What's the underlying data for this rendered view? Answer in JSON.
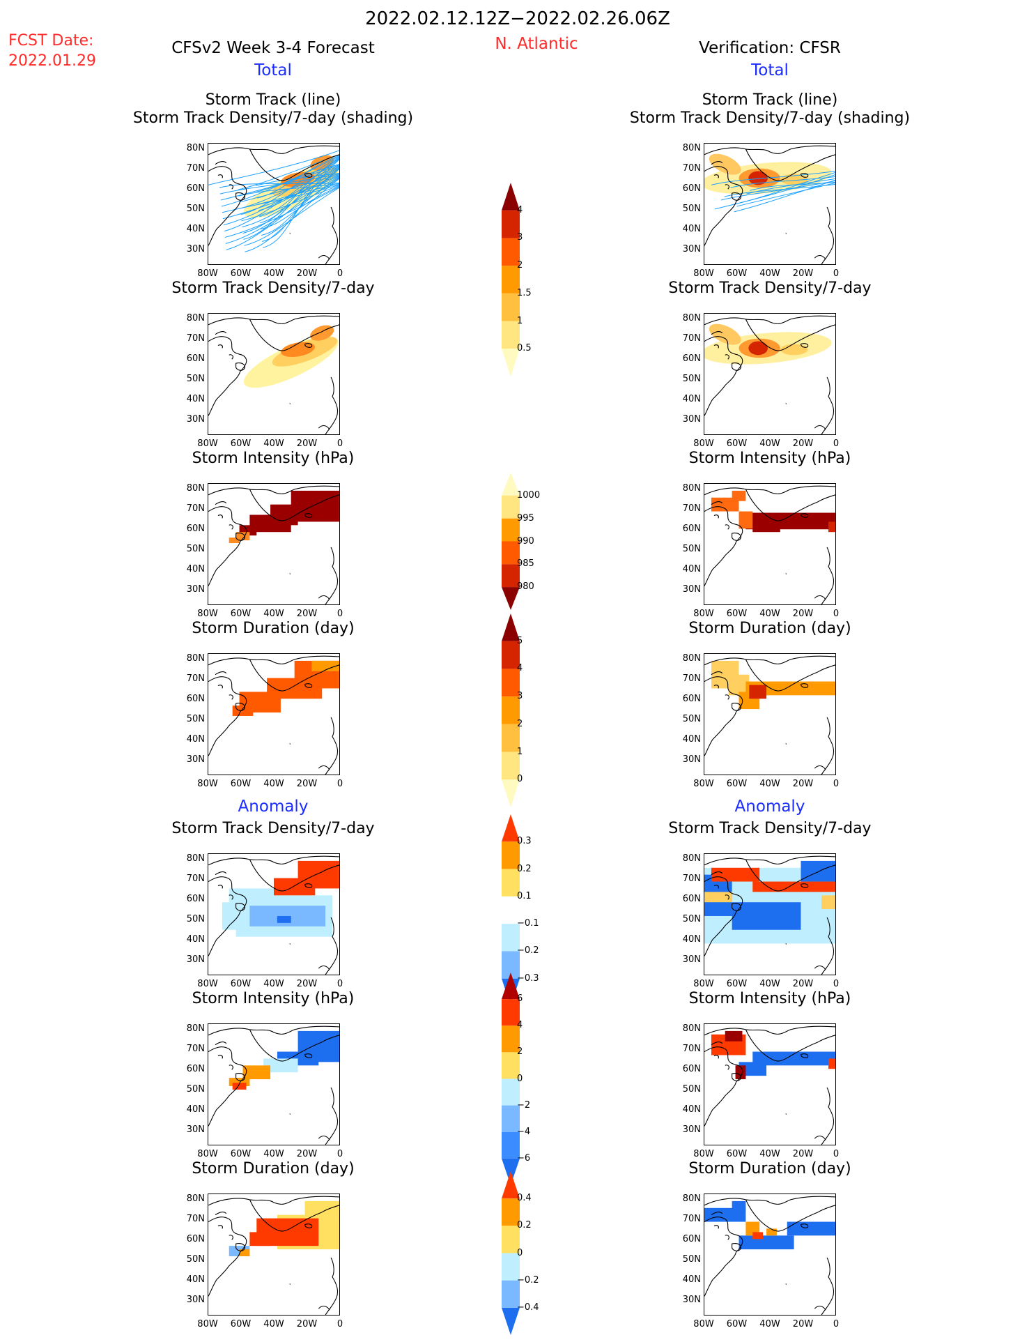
{
  "header": {
    "date_range": "2022.02.12.12Z−2022.02.26.06Z",
    "fcst_label": "FCST Date:",
    "fcst_date": "2022.01.29",
    "model_title": "CFSv2 Week 3-4 Forecast",
    "region": "N. Atlantic",
    "verification": "Verification: CFSR"
  },
  "sections": {
    "left_total": "Total",
    "right_total": "Total",
    "left_anomaly": "Anomaly",
    "right_anomaly": "Anomaly"
  },
  "panel_titles": {
    "track_line": "Storm Track (line)",
    "track_shading": "Storm Track Density/7-day (shading)",
    "density": "Storm Track Density/7-day",
    "intensity": "Storm Intensity (hPa)",
    "duration": "Storm Duration (day)"
  },
  "axes": {
    "lat_ticks": [
      "80N",
      "70N",
      "60N",
      "50N",
      "40N",
      "30N"
    ],
    "lon_ticks": [
      "80W",
      "60W",
      "40W",
      "20W",
      "0"
    ]
  },
  "colorbars": {
    "density_total": {
      "labels": [
        "4",
        "3",
        "2",
        "1.5",
        "1",
        "0.5"
      ],
      "colors": [
        "#8b0000",
        "#d42400",
        "#ff5a00",
        "#ff9a00",
        "#ffc040",
        "#ffe680",
        "#fffabf"
      ]
    },
    "intensity_total": {
      "labels": [
        "1000",
        "995",
        "990",
        "985",
        "980"
      ],
      "colors": [
        "#fffabf",
        "#ffe680",
        "#ff9a00",
        "#ff5a00",
        "#d42400",
        "#8b0000"
      ]
    },
    "duration_total": {
      "labels": [
        "5",
        "4",
        "3",
        "2",
        "1",
        "0"
      ],
      "colors": [
        "#8b0000",
        "#d42400",
        "#ff5a00",
        "#ff9a00",
        "#ffc040",
        "#ffe680",
        "#fffabf"
      ]
    },
    "density_anom": {
      "labels": [
        "0.3",
        "0.2",
        "0.1",
        "−0.1",
        "−0.2",
        "−0.3"
      ],
      "colors": [
        "#ff3a00",
        "#ff9a00",
        "#ffe060",
        "#ffffff",
        "#bfefff",
        "#7ab8ff",
        "#1e6ef0"
      ]
    },
    "intensity_anom": {
      "labels": [
        "6",
        "4",
        "2",
        "0",
        "−2",
        "−4",
        "−6"
      ],
      "colors": [
        "#b00000",
        "#ff3a00",
        "#ff9a00",
        "#ffe060",
        "#bfefff",
        "#7ab8ff",
        "#3b8cff",
        "#1e6ef0"
      ]
    },
    "duration_anom": {
      "labels": [
        "0.4",
        "0.2",
        "0",
        "−0.2",
        "−0.4"
      ],
      "colors": [
        "#ff3a00",
        "#ff9a00",
        "#ffe060",
        "#bfefff",
        "#7ab8ff",
        "#1e6ef0"
      ]
    }
  }
}
